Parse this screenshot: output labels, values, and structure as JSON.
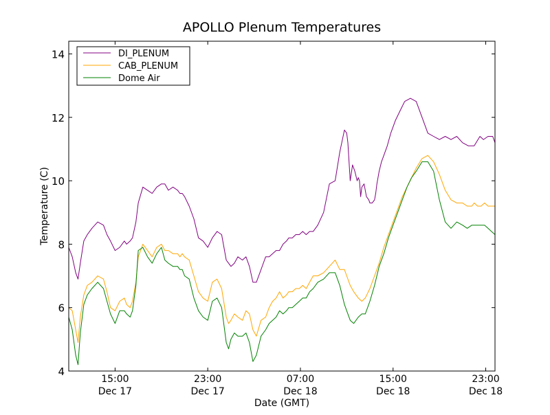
{
  "chart_data": {
    "type": "line",
    "title": "APOLLO Plenum Temperatures",
    "xlabel": "Date (GMT)",
    "ylabel": "Temperature (C)",
    "xunit": "hours since Dec 17 11:00 GMT",
    "xlim": [
      0,
      36.8
    ],
    "ylim": [
      4,
      14.4
    ],
    "grid": false,
    "legend_position": "top-left",
    "yticks": [
      4,
      6,
      8,
      10,
      12,
      14
    ],
    "xticks": [
      {
        "x": 4,
        "time": "15:00",
        "date": "Dec 17"
      },
      {
        "x": 12,
        "time": "23:00",
        "date": "Dec 17"
      },
      {
        "x": 20,
        "time": "07:00",
        "date": "Dec 18"
      },
      {
        "x": 28,
        "time": "15:00",
        "date": "Dec 18"
      },
      {
        "x": 36,
        "time": "23:00",
        "date": "Dec 18"
      }
    ],
    "series": [
      {
        "name": "DI_PLENUM",
        "color": "#800080",
        "x": [
          0,
          0.3,
          0.6,
          0.8,
          1.0,
          1.3,
          1.6,
          2.0,
          2.5,
          3.0,
          3.3,
          3.6,
          4.0,
          4.4,
          4.8,
          5.0,
          5.3,
          5.5,
          5.8,
          6.0,
          6.4,
          6.8,
          7.2,
          7.6,
          8.0,
          8.3,
          8.6,
          9.0,
          9.4,
          9.6,
          9.8,
          10.0,
          10.4,
          10.8,
          11.2,
          11.6,
          12.0,
          12.4,
          12.8,
          13.2,
          13.6,
          13.8,
          14.0,
          14.3,
          14.6,
          15.0,
          15.3,
          15.6,
          15.9,
          16.2,
          16.6,
          17.0,
          17.3,
          17.6,
          17.9,
          18.2,
          18.5,
          18.8,
          19.0,
          19.3,
          19.6,
          19.9,
          20.2,
          20.5,
          20.8,
          21.1,
          21.5,
          22.0,
          22.5,
          23.0,
          23.4,
          23.8,
          24.0,
          24.1,
          24.3,
          24.5,
          24.7,
          24.9,
          25.0,
          25.1,
          25.2,
          25.3,
          25.5,
          25.7,
          25.9,
          26.0,
          26.2,
          26.4,
          26.5,
          26.6,
          26.8,
          27.0,
          27.2,
          27.5,
          27.8,
          28.2,
          28.6,
          29.0,
          29.5,
          30.0,
          30.5,
          31.0,
          31.5,
          32.0,
          32.5,
          33.0,
          33.5,
          34.0,
          34.5,
          35.0,
          35.5,
          35.8,
          36.2,
          36.6,
          36.8
        ],
        "values": [
          7.9,
          7.6,
          7.1,
          6.9,
          7.4,
          8.1,
          8.3,
          8.5,
          8.7,
          8.6,
          8.3,
          8.1,
          7.8,
          7.9,
          8.1,
          8.0,
          8.1,
          8.2,
          8.7,
          9.3,
          9.8,
          9.7,
          9.6,
          9.8,
          9.9,
          9.9,
          9.7,
          9.8,
          9.7,
          9.6,
          9.6,
          9.5,
          9.2,
          8.8,
          8.2,
          8.1,
          7.9,
          8.2,
          8.4,
          8.3,
          7.5,
          7.4,
          7.3,
          7.4,
          7.6,
          7.5,
          7.6,
          7.3,
          6.8,
          6.8,
          7.2,
          7.6,
          7.6,
          7.7,
          7.8,
          7.8,
          8.0,
          8.1,
          8.2,
          8.2,
          8.3,
          8.3,
          8.4,
          8.3,
          8.4,
          8.4,
          8.6,
          9.0,
          9.9,
          10.0,
          10.9,
          11.6,
          11.5,
          11.2,
          10.0,
          10.5,
          10.3,
          10.0,
          10.1,
          10.0,
          9.5,
          9.8,
          9.9,
          9.5,
          9.4,
          9.3,
          9.3,
          9.4,
          9.6,
          9.9,
          10.3,
          10.6,
          10.8,
          11.1,
          11.5,
          11.9,
          12.2,
          12.5,
          12.6,
          12.5,
          12.0,
          11.5,
          11.4,
          11.3,
          11.4,
          11.3,
          11.4,
          11.2,
          11.1,
          11.1,
          11.4,
          11.3,
          11.4,
          11.4,
          11.2
        ],
        "x_note": "DI_PLENUM uses its own x array"
      },
      {
        "name": "CAB_PLENUM",
        "color": "#FFA500",
        "x": [
          0,
          0.3,
          0.6,
          0.8,
          1.0,
          1.3,
          1.6,
          2.0,
          2.5,
          3.0,
          3.3,
          3.6,
          4.0,
          4.4,
          4.8,
          5.0,
          5.3,
          5.5,
          5.8,
          6.0,
          6.4,
          6.8,
          7.2,
          7.6,
          8.0,
          8.3,
          8.6,
          9.0,
          9.4,
          9.6,
          9.8,
          10.0,
          10.4,
          10.8,
          11.2,
          11.6,
          12.0,
          12.4,
          12.8,
          13.2,
          13.6,
          13.8,
          14.0,
          14.3,
          14.6,
          15.0,
          15.3,
          15.6,
          15.9,
          16.2,
          16.6,
          17.0,
          17.3,
          17.6,
          17.9,
          18.2,
          18.5,
          18.8,
          19.0,
          19.3,
          19.6,
          19.9,
          20.2,
          20.5,
          20.8,
          21.1,
          21.5,
          22.0,
          22.5,
          23.0,
          23.4,
          23.8,
          24.0,
          24.3,
          24.6,
          25.0,
          25.3,
          25.6,
          26.0,
          26.4,
          26.8,
          27.2,
          27.6,
          28.0,
          28.4,
          28.8,
          29.2,
          29.6,
          30.0,
          30.5,
          31.0,
          31.5,
          32.0,
          32.5,
          33.0,
          33.5,
          34.0,
          34.4,
          34.8,
          35.0,
          35.3,
          35.6,
          35.9,
          36.2,
          36.5,
          36.8
        ],
        "values": [
          6.0,
          5.9,
          5.3,
          4.9,
          5.7,
          6.4,
          6.7,
          6.8,
          7.0,
          6.9,
          6.5,
          6.0,
          5.9,
          6.2,
          6.3,
          6.1,
          6.0,
          6.2,
          6.8,
          7.6,
          8.0,
          7.8,
          7.6,
          7.9,
          8.0,
          7.8,
          7.8,
          7.7,
          7.7,
          7.6,
          7.7,
          7.6,
          7.5,
          7.0,
          6.5,
          6.3,
          6.2,
          6.8,
          6.9,
          6.6,
          5.7,
          5.5,
          5.6,
          5.8,
          5.7,
          5.6,
          5.9,
          5.8,
          5.3,
          5.1,
          5.6,
          5.7,
          6.0,
          6.2,
          6.3,
          6.5,
          6.3,
          6.4,
          6.5,
          6.5,
          6.6,
          6.6,
          6.7,
          6.6,
          6.8,
          7.0,
          7.0,
          7.1,
          7.3,
          7.5,
          7.2,
          7.2,
          7.0,
          6.7,
          6.5,
          6.3,
          6.2,
          6.3,
          6.6,
          7.0,
          7.4,
          7.9,
          8.3,
          8.7,
          9.1,
          9.5,
          9.8,
          10.1,
          10.4,
          10.7,
          10.8,
          10.6,
          10.2,
          9.7,
          9.4,
          9.3,
          9.3,
          9.2,
          9.2,
          9.3,
          9.2,
          9.2,
          9.3,
          9.2,
          9.2,
          9.2
        ]
      },
      {
        "name": "Dome Air",
        "color": "#008000",
        "x": [
          0,
          0.3,
          0.6,
          0.8,
          1.0,
          1.3,
          1.6,
          2.0,
          2.5,
          3.0,
          3.3,
          3.6,
          4.0,
          4.4,
          4.8,
          5.0,
          5.3,
          5.5,
          5.8,
          6.0,
          6.4,
          6.8,
          7.2,
          7.6,
          8.0,
          8.3,
          8.6,
          9.0,
          9.4,
          9.6,
          9.8,
          10.0,
          10.4,
          10.8,
          11.2,
          11.6,
          12.0,
          12.4,
          12.8,
          13.2,
          13.6,
          13.8,
          14.0,
          14.3,
          14.6,
          15.0,
          15.3,
          15.6,
          15.9,
          16.2,
          16.6,
          17.0,
          17.3,
          17.6,
          17.9,
          18.2,
          18.5,
          18.8,
          19.0,
          19.3,
          19.6,
          19.9,
          20.2,
          20.5,
          20.8,
          21.1,
          21.5,
          22.0,
          22.5,
          23.0,
          23.4,
          23.8,
          24.0,
          24.3,
          24.6,
          25.0,
          25.3,
          25.6,
          26.0,
          26.4,
          26.8,
          27.2,
          27.6,
          28.0,
          28.4,
          28.8,
          29.2,
          29.6,
          30.0,
          30.5,
          31.0,
          31.5,
          32.0,
          32.5,
          33.0,
          33.5,
          34.0,
          34.4,
          34.8,
          35.0,
          35.3,
          35.6,
          35.9,
          36.2,
          36.5,
          36.8
        ],
        "values": [
          5.7,
          5.3,
          4.5,
          4.2,
          5.2,
          6.1,
          6.4,
          6.6,
          6.8,
          6.6,
          6.2,
          5.8,
          5.5,
          5.9,
          5.9,
          5.8,
          5.7,
          5.9,
          6.7,
          7.8,
          7.9,
          7.6,
          7.4,
          7.7,
          7.9,
          7.5,
          7.4,
          7.3,
          7.3,
          7.2,
          7.2,
          7.0,
          6.9,
          6.3,
          5.9,
          5.7,
          5.6,
          6.2,
          6.3,
          6.0,
          4.9,
          4.7,
          5.0,
          5.2,
          5.1,
          5.1,
          5.2,
          4.9,
          4.3,
          4.5,
          5.1,
          5.3,
          5.5,
          5.6,
          5.7,
          5.9,
          5.8,
          5.9,
          6.0,
          6.0,
          6.1,
          6.2,
          6.3,
          6.3,
          6.5,
          6.6,
          6.8,
          6.9,
          7.1,
          7.1,
          6.7,
          6.1,
          5.9,
          5.6,
          5.5,
          5.7,
          5.8,
          5.8,
          6.2,
          6.7,
          7.3,
          7.7,
          8.2,
          8.6,
          9.0,
          9.4,
          9.8,
          10.1,
          10.3,
          10.6,
          10.6,
          10.3,
          9.4,
          8.7,
          8.5,
          8.7,
          8.6,
          8.5,
          8.6,
          8.6,
          8.6,
          8.6,
          8.6,
          8.5,
          8.4,
          8.3
        ]
      }
    ]
  }
}
